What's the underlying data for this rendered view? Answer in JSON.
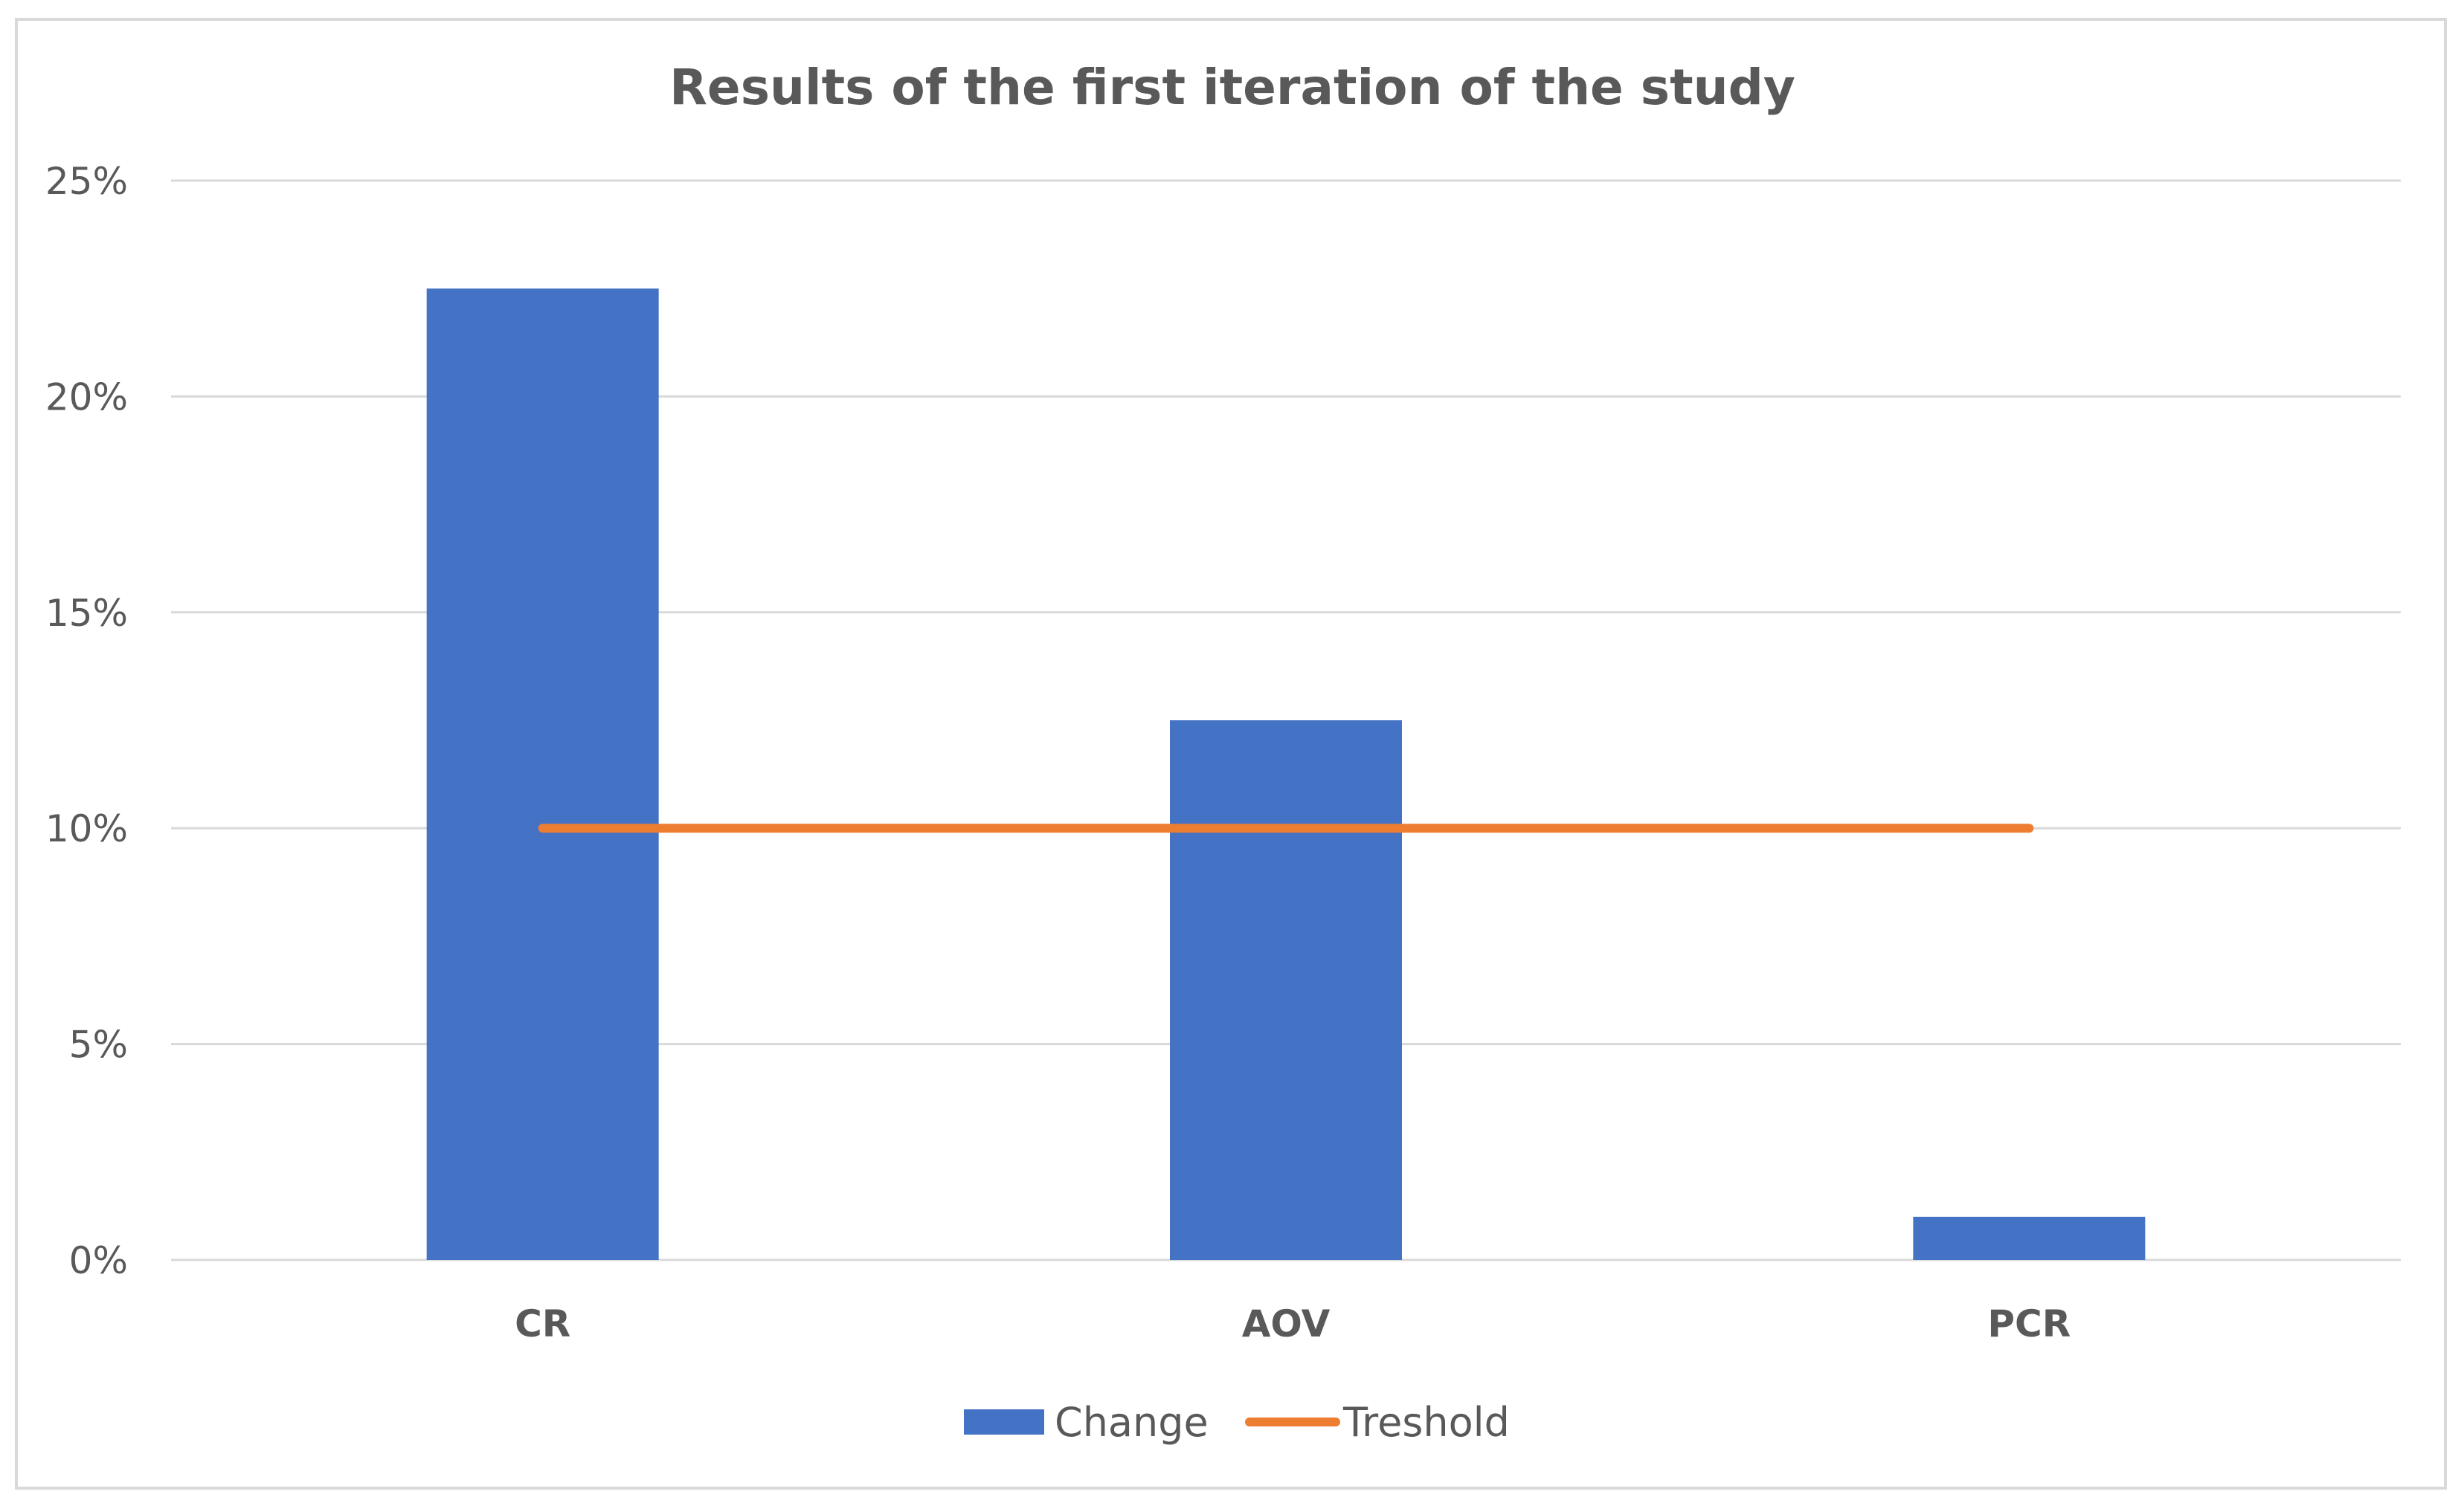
{
  "chart_data": {
    "type": "bar",
    "title": "Results of the first iteration of the study",
    "xlabel": "",
    "ylabel": "",
    "categories": [
      "CR",
      "AOV",
      "PCR"
    ],
    "series": [
      {
        "name": "Change",
        "type": "bar",
        "color": "#4472c4",
        "values": [
          22.5,
          12.5,
          1.0
        ]
      },
      {
        "name": "Treshold",
        "type": "line",
        "color": "#ed7d31",
        "values": [
          10,
          10,
          10
        ]
      }
    ],
    "ylim": [
      0,
      25
    ],
    "yticks": [
      0,
      5,
      10,
      15,
      20,
      25
    ],
    "ytick_labels": [
      "0%",
      "5%",
      "10%",
      "15%",
      "20%",
      "25%"
    ],
    "grid": true,
    "legend_position": "bottom",
    "colors": {
      "gridline": "#d9d9d9",
      "text": "#595959"
    }
  }
}
